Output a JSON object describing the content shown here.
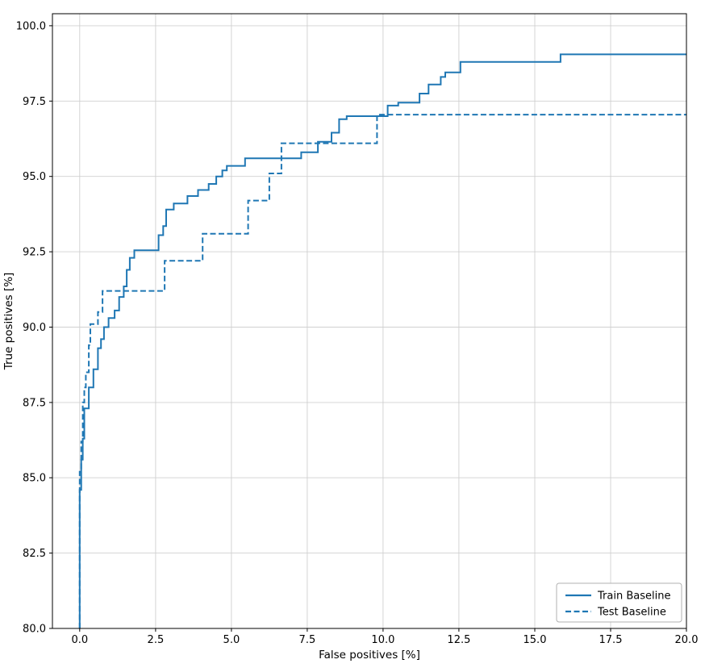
{
  "chart_data": {
    "type": "line",
    "subtype": "roc-step-curves",
    "title": "",
    "xlabel": "False positives [%]",
    "ylabel": "True positives [%]",
    "xlim": [
      -0.9,
      20
    ],
    "ylim": [
      80,
      100.4
    ],
    "xticks": [
      0,
      2.5,
      5,
      7.5,
      10,
      12.5,
      15,
      17.5,
      20
    ],
    "yticks": [
      80,
      82.5,
      85,
      87.5,
      90,
      92.5,
      95,
      97.5,
      100
    ],
    "xtick_labels": [
      "0.0",
      "2.5",
      "5.0",
      "7.5",
      "10.0",
      "12.5",
      "15.0",
      "17.5",
      "20.0"
    ],
    "ytick_labels": [
      "80.0",
      "82.5",
      "85.0",
      "87.5",
      "90.0",
      "92.5",
      "95.0",
      "97.5",
      "100.0"
    ],
    "grid": true,
    "grid_color": "#d0d0d0",
    "spine_color": "#000000",
    "line_color": "#1f77b4",
    "legend_position": "lower right",
    "series": [
      {
        "name": "Train Baseline",
        "style": "solid",
        "color": "#1f77b4",
        "points": [
          [
            0.0,
            80.0
          ],
          [
            0.0,
            84.6
          ],
          [
            0.05,
            84.6
          ],
          [
            0.05,
            85.6
          ],
          [
            0.1,
            85.6
          ],
          [
            0.1,
            86.3
          ],
          [
            0.15,
            86.3
          ],
          [
            0.15,
            87.3
          ],
          [
            0.3,
            87.3
          ],
          [
            0.3,
            88.0
          ],
          [
            0.45,
            88.0
          ],
          [
            0.45,
            88.6
          ],
          [
            0.6,
            88.6
          ],
          [
            0.6,
            89.3
          ],
          [
            0.7,
            89.3
          ],
          [
            0.7,
            89.6
          ],
          [
            0.8,
            89.6
          ],
          [
            0.8,
            90.0
          ],
          [
            0.95,
            90.0
          ],
          [
            0.95,
            90.3
          ],
          [
            1.15,
            90.3
          ],
          [
            1.15,
            90.55
          ],
          [
            1.3,
            90.55
          ],
          [
            1.3,
            91.0
          ],
          [
            1.45,
            91.0
          ],
          [
            1.45,
            91.35
          ],
          [
            1.55,
            91.35
          ],
          [
            1.55,
            91.9
          ],
          [
            1.65,
            91.9
          ],
          [
            1.65,
            92.3
          ],
          [
            1.8,
            92.3
          ],
          [
            1.8,
            92.55
          ],
          [
            2.6,
            92.55
          ],
          [
            2.6,
            93.05
          ],
          [
            2.75,
            93.05
          ],
          [
            2.75,
            93.35
          ],
          [
            2.85,
            93.35
          ],
          [
            2.85,
            93.9
          ],
          [
            3.1,
            93.9
          ],
          [
            3.1,
            94.1
          ],
          [
            3.55,
            94.1
          ],
          [
            3.55,
            94.35
          ],
          [
            3.9,
            94.35
          ],
          [
            3.9,
            94.55
          ],
          [
            4.25,
            94.55
          ],
          [
            4.25,
            94.75
          ],
          [
            4.5,
            94.75
          ],
          [
            4.5,
            95.0
          ],
          [
            4.7,
            95.0
          ],
          [
            4.7,
            95.2
          ],
          [
            4.85,
            95.2
          ],
          [
            4.85,
            95.35
          ],
          [
            5.45,
            95.35
          ],
          [
            5.45,
            95.6
          ],
          [
            7.3,
            95.6
          ],
          [
            7.3,
            95.8
          ],
          [
            7.85,
            95.8
          ],
          [
            7.85,
            96.15
          ],
          [
            8.3,
            96.15
          ],
          [
            8.3,
            96.45
          ],
          [
            8.55,
            96.45
          ],
          [
            8.55,
            96.9
          ],
          [
            8.8,
            96.9
          ],
          [
            8.8,
            97.0
          ],
          [
            10.15,
            97.0
          ],
          [
            10.15,
            97.35
          ],
          [
            10.5,
            97.35
          ],
          [
            10.5,
            97.45
          ],
          [
            11.2,
            97.45
          ],
          [
            11.2,
            97.75
          ],
          [
            11.5,
            97.75
          ],
          [
            11.5,
            98.05
          ],
          [
            11.9,
            98.05
          ],
          [
            11.9,
            98.3
          ],
          [
            12.05,
            98.3
          ],
          [
            12.05,
            98.45
          ],
          [
            12.55,
            98.45
          ],
          [
            12.55,
            98.8
          ],
          [
            15.85,
            98.8
          ],
          [
            15.85,
            99.05
          ],
          [
            20.0,
            99.05
          ]
        ]
      },
      {
        "name": "Test Baseline",
        "style": "dashed",
        "color": "#1f77b4",
        "points": [
          [
            0.0,
            80.0
          ],
          [
            0.0,
            85.2
          ],
          [
            0.05,
            85.2
          ],
          [
            0.05,
            86.2
          ],
          [
            0.1,
            86.2
          ],
          [
            0.1,
            87.5
          ],
          [
            0.15,
            87.5
          ],
          [
            0.15,
            88.0
          ],
          [
            0.2,
            88.0
          ],
          [
            0.2,
            88.5
          ],
          [
            0.3,
            88.5
          ],
          [
            0.3,
            89.4
          ],
          [
            0.35,
            89.4
          ],
          [
            0.35,
            90.1
          ],
          [
            0.6,
            90.1
          ],
          [
            0.6,
            90.5
          ],
          [
            0.75,
            90.5
          ],
          [
            0.75,
            91.2
          ],
          [
            2.8,
            91.2
          ],
          [
            2.8,
            92.2
          ],
          [
            4.05,
            92.2
          ],
          [
            4.05,
            93.1
          ],
          [
            5.55,
            93.1
          ],
          [
            5.55,
            94.2
          ],
          [
            6.25,
            94.2
          ],
          [
            6.25,
            95.1
          ],
          [
            6.65,
            95.1
          ],
          [
            6.65,
            96.1
          ],
          [
            9.8,
            96.1
          ],
          [
            9.8,
            97.05
          ],
          [
            20.0,
            97.05
          ]
        ]
      }
    ]
  }
}
